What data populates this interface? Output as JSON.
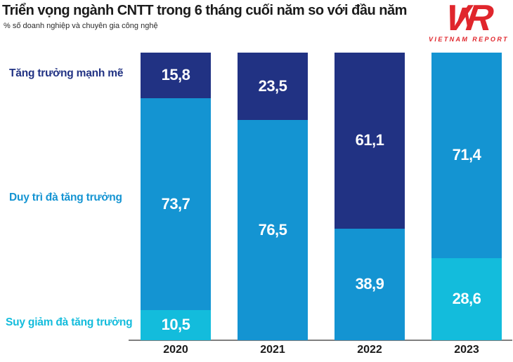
{
  "header": {
    "title": "Triển vọng ngành CNTT trong 6 tháng cuối năm so với đầu năm",
    "subtitle": "% số doanh nghiệp và chuyên gia công nghệ",
    "logo": {
      "letters": [
        "V",
        "N",
        "R"
      ],
      "text": "VIETNAM REPORT",
      "color": "#e0262c"
    }
  },
  "chart_data": {
    "type": "bar",
    "stacked": true,
    "unit": "%",
    "title": "Triển vọng ngành CNTT trong 6 tháng cuối năm so với đầu năm",
    "subtitle": "% số doanh nghiệp và chuyên gia công nghệ",
    "categories": [
      "2020",
      "2021",
      "2022",
      "2023"
    ],
    "series": [
      {
        "name": "Tăng trưởng mạnh mẽ",
        "color": "#213283",
        "values": [
          15.8,
          23.5,
          61.1,
          0
        ]
      },
      {
        "name": "Duy trì đà tăng trưởng",
        "color": "#1494d2",
        "values": [
          73.7,
          76.5,
          38.9,
          71.4
        ]
      },
      {
        "name": "Suy giảm đà tăng trưởng",
        "color": "#13bcdc",
        "values": [
          10.5,
          0,
          0,
          28.6
        ]
      }
    ],
    "value_labels": [
      "15,8",
      "73,7",
      "10,5",
      "23,5",
      "76,5",
      "61,1",
      "38,9",
      "71,4",
      "28,6"
    ],
    "label_format": "comma-decimal",
    "ylim": [
      0,
      100
    ],
    "grid": false,
    "legend_position": "left-inline",
    "axis_line_color": "#7f7f7f",
    "value_label_color": "#ffffff"
  }
}
